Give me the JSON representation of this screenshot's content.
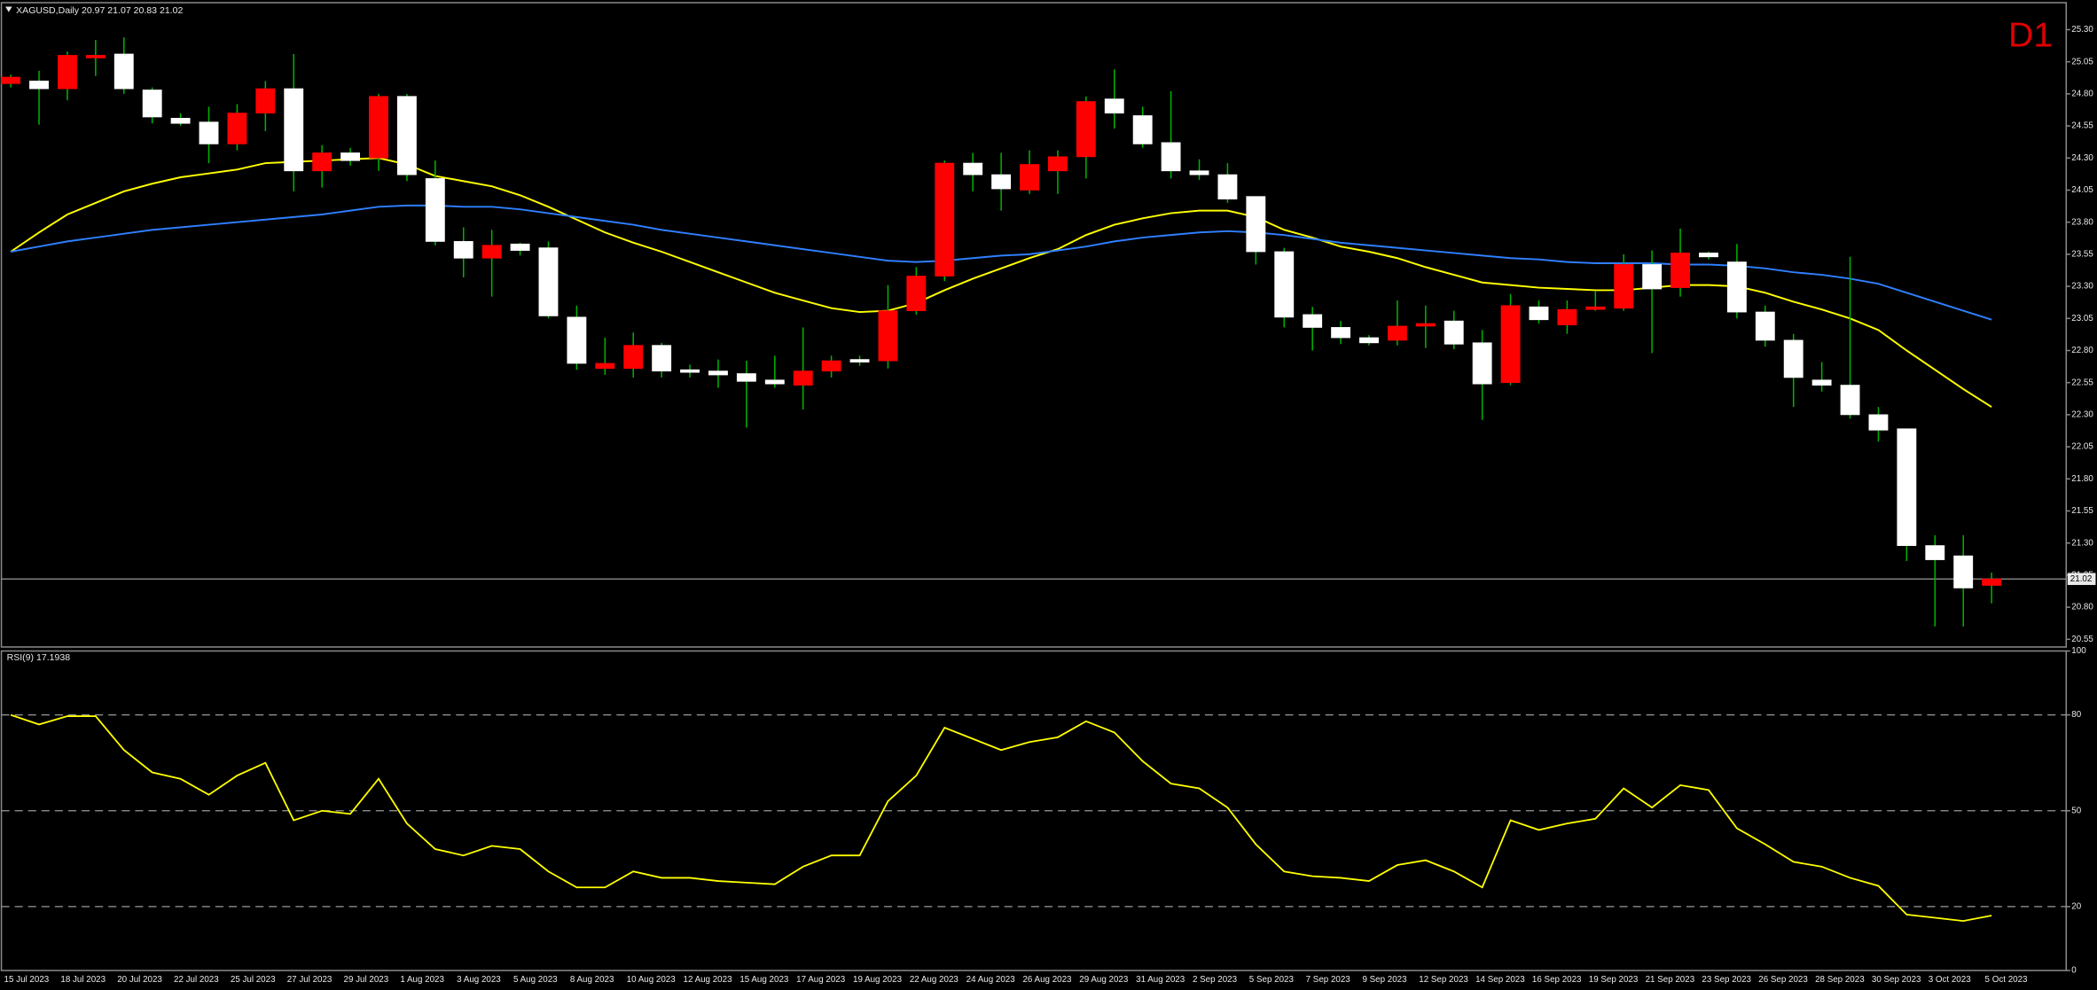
{
  "chart_data": [
    {
      "type": "candlestick",
      "title": "XAGUSD,Daily 20.97 21.07 20.83 21.02",
      "timeframe": "D1",
      "categories": [
        "15 Jul 2023",
        null,
        "18 Jul 2023",
        null,
        "20 Jul 2023",
        null,
        "22 Jul 2023",
        null,
        "25 Jul 2023",
        null,
        "27 Jul 2023",
        null,
        "29 Jul 2023",
        null,
        "1 Aug 2023",
        null,
        "3 Aug 2023",
        null,
        "5 Aug 2023",
        null,
        "8 Aug 2023",
        null,
        "10 Aug 2023",
        null,
        "12 Aug 2023",
        null,
        "15 Aug 2023",
        null,
        "17 Aug 2023",
        null,
        "19 Aug 2023",
        null,
        "22 Aug 2023",
        null,
        "24 Aug 2023",
        null,
        "26 Aug 2023",
        null,
        "29 Aug 2023",
        null,
        "31 Aug 2023",
        null,
        "2 Sep 2023",
        null,
        "5 Sep 2023",
        null,
        "7 Sep 2023",
        null,
        "9 Sep 2023",
        null,
        "12 Sep 2023",
        null,
        "14 Sep 2023",
        null,
        "16 Sep 2023",
        null,
        "19 Sep 2023",
        null,
        "21 Sep 2023",
        null,
        "23 Sep 2023",
        null,
        "26 Sep 2023",
        null,
        "28 Sep 2023",
        null,
        "30 Sep 2023",
        null,
        "3 Oct 2023",
        null,
        "5 Oct 2023"
      ],
      "open": [
        24.88,
        24.9,
        24.84,
        25.08,
        25.11,
        24.83,
        24.61,
        24.58,
        24.41,
        24.65,
        24.84,
        24.2,
        24.34,
        24.3,
        24.78,
        24.14,
        23.65,
        23.52,
        23.63,
        23.6,
        23.06,
        22.66,
        22.66,
        22.84,
        22.65,
        22.64,
        22.62,
        22.57,
        22.53,
        22.64,
        22.73,
        22.72,
        23.11,
        23.38,
        24.26,
        24.17,
        24.05,
        24.2,
        24.31,
        24.76,
        24.63,
        24.42,
        24.2,
        24.17,
        24.0,
        23.57,
        23.08,
        22.98,
        22.9,
        22.88,
        22.99,
        23.03,
        22.86,
        22.55,
        23.14,
        23.0,
        23.12,
        23.13,
        23.47,
        23.29,
        23.56,
        23.49,
        23.1,
        22.88,
        22.57,
        22.53,
        22.3,
        22.19,
        21.28,
        21.2,
        20.97
      ],
      "high": [
        24.95,
        24.98,
        25.13,
        25.22,
        25.24,
        24.85,
        24.65,
        24.7,
        24.72,
        24.9,
        25.11,
        24.4,
        24.38,
        24.8,
        24.8,
        24.28,
        23.76,
        23.74,
        23.64,
        23.65,
        23.15,
        22.9,
        22.94,
        22.86,
        22.69,
        22.73,
        22.72,
        22.76,
        22.98,
        22.76,
        22.76,
        23.31,
        23.45,
        24.28,
        24.34,
        24.34,
        24.36,
        24.36,
        24.78,
        24.99,
        24.7,
        24.82,
        24.29,
        24.26,
        24.0,
        23.6,
        23.14,
        23.03,
        22.92,
        23.19,
        23.15,
        23.11,
        22.96,
        23.24,
        23.19,
        23.19,
        23.26,
        23.55,
        23.58,
        23.75,
        23.57,
        23.63,
        23.15,
        22.93,
        22.71,
        23.53,
        22.36,
        22.19,
        21.36,
        21.36,
        21.07
      ],
      "low": [
        24.85,
        24.56,
        24.75,
        24.94,
        24.8,
        24.57,
        24.55,
        24.26,
        24.36,
        24.51,
        24.04,
        24.07,
        24.24,
        24.2,
        24.12,
        23.62,
        23.37,
        23.22,
        23.54,
        23.05,
        22.65,
        22.61,
        22.59,
        22.59,
        22.59,
        22.51,
        22.2,
        22.51,
        22.34,
        22.59,
        22.68,
        22.66,
        23.08,
        23.34,
        24.04,
        23.89,
        24.02,
        24.02,
        24.14,
        24.53,
        24.38,
        24.14,
        24.13,
        23.95,
        23.47,
        22.98,
        22.8,
        22.85,
        22.84,
        22.84,
        22.82,
        22.81,
        22.26,
        22.53,
        23.01,
        22.93,
        23.11,
        23.11,
        22.78,
        23.22,
        23.51,
        23.05,
        22.83,
        22.36,
        22.48,
        22.27,
        22.09,
        21.16,
        20.65,
        20.65,
        20.83
      ],
      "close": [
        24.93,
        24.84,
        25.1,
        25.1,
        24.84,
        24.62,
        24.57,
        24.41,
        24.65,
        24.84,
        24.2,
        24.34,
        24.28,
        24.78,
        24.17,
        23.65,
        23.52,
        23.62,
        23.58,
        23.07,
        22.7,
        22.7,
        22.84,
        22.64,
        22.63,
        22.61,
        22.56,
        22.54,
        22.64,
        22.72,
        22.71,
        23.11,
        23.38,
        24.26,
        24.17,
        24.06,
        24.25,
        24.31,
        24.74,
        24.65,
        24.41,
        24.2,
        24.17,
        23.98,
        23.57,
        23.06,
        22.98,
        22.9,
        22.86,
        22.99,
        23.01,
        22.85,
        22.54,
        23.15,
        23.04,
        23.12,
        23.14,
        23.47,
        23.28,
        23.56,
        23.53,
        23.1,
        22.88,
        22.59,
        22.53,
        22.3,
        22.18,
        21.28,
        21.17,
        20.95,
        21.02
      ],
      "up_color": "#ff0000",
      "down_color": "#ffffff",
      "wick_color": "#00b400",
      "overlays": [
        {
          "color": "#ffff00",
          "values": [
            23.57,
            23.72,
            23.86,
            23.95,
            24.04,
            24.1,
            24.15,
            24.18,
            24.21,
            24.26,
            24.27,
            24.28,
            24.29,
            24.3,
            24.25,
            24.16,
            24.12,
            24.08,
            24.01,
            23.92,
            23.82,
            23.72,
            23.64,
            23.57,
            23.49,
            23.41,
            23.33,
            23.25,
            23.19,
            23.13,
            23.1,
            23.11,
            23.17,
            23.27,
            23.36,
            23.44,
            23.52,
            23.59,
            23.7,
            23.78,
            23.83,
            23.87,
            23.89,
            23.89,
            23.84,
            23.74,
            23.68,
            23.61,
            23.57,
            23.52,
            23.45,
            23.39,
            23.33,
            23.31,
            23.29,
            23.28,
            23.27,
            23.27,
            23.29,
            23.31,
            23.31,
            23.3,
            23.25,
            23.18,
            23.12,
            23.05,
            22.96,
            22.8,
            22.65,
            22.5,
            22.36
          ]
        },
        {
          "color": "#2f7fff",
          "values": [
            23.57,
            23.61,
            23.65,
            23.68,
            23.71,
            23.74,
            23.76,
            23.78,
            23.8,
            23.82,
            23.84,
            23.86,
            23.89,
            23.92,
            23.93,
            23.93,
            23.92,
            23.92,
            23.9,
            23.87,
            23.84,
            23.81,
            23.78,
            23.74,
            23.71,
            23.68,
            23.65,
            23.62,
            23.59,
            23.56,
            23.53,
            23.5,
            23.49,
            23.5,
            23.52,
            23.54,
            23.55,
            23.58,
            23.61,
            23.65,
            23.68,
            23.7,
            23.72,
            23.73,
            23.72,
            23.7,
            23.67,
            23.64,
            23.62,
            23.6,
            23.58,
            23.56,
            23.54,
            23.52,
            23.51,
            23.49,
            23.48,
            23.48,
            23.48,
            23.47,
            23.47,
            23.46,
            23.44,
            23.41,
            23.39,
            23.36,
            23.32,
            23.25,
            23.18,
            23.11,
            23.04
          ]
        }
      ],
      "current_price": 21.02,
      "ylim": [
        20.49,
        25.5
      ],
      "yticks": [
        {
          "value": 25.3,
          "label": "25.30"
        },
        25.05,
        {
          "value": 24.8,
          "label": "24.80"
        },
        24.55,
        {
          "value": 24.3,
          "label": "24.30"
        },
        24.05,
        {
          "value": 23.8,
          "label": "23.80"
        },
        23.55,
        {
          "value": 23.3,
          "label": "23.30"
        },
        23.05,
        {
          "value": 22.8,
          "label": "22.80"
        },
        22.55,
        {
          "value": 22.3,
          "label": "22.30"
        },
        22.05,
        {
          "value": 21.8,
          "label": "21.80"
        },
        21.55,
        {
          "value": 21.3,
          "label": "21.30"
        },
        21.05,
        {
          "value": 20.8,
          "label": "20.80"
        },
        20.55
      ]
    },
    {
      "type": "line",
      "title": "RSI(9) 17.1938",
      "color": "#ffff00",
      "values": [
        80,
        77,
        79.6,
        79.6,
        69,
        62,
        60,
        55,
        61,
        65,
        47,
        50,
        49,
        60,
        46,
        38,
        36,
        39,
        38,
        31,
        26,
        26,
        31,
        29,
        29,
        28,
        27.5,
        27,
        32.5,
        36,
        36,
        53,
        61,
        76,
        72.5,
        69,
        71.5,
        73,
        78,
        74.5,
        65.5,
        58.5,
        57,
        51,
        39.5,
        31,
        29.5,
        29,
        28,
        33,
        34.5,
        31,
        26,
        47,
        44,
        46,
        47.5,
        57,
        51,
        58,
        56.5,
        44.5,
        39.5,
        34,
        32.5,
        29,
        26.5,
        17.5,
        16.5,
        15.5,
        17.1938
      ],
      "ylim": [
        0,
        100
      ],
      "yticks": [
        0,
        20,
        50,
        80,
        100
      ],
      "levels": [
        20,
        50,
        80
      ]
    }
  ]
}
